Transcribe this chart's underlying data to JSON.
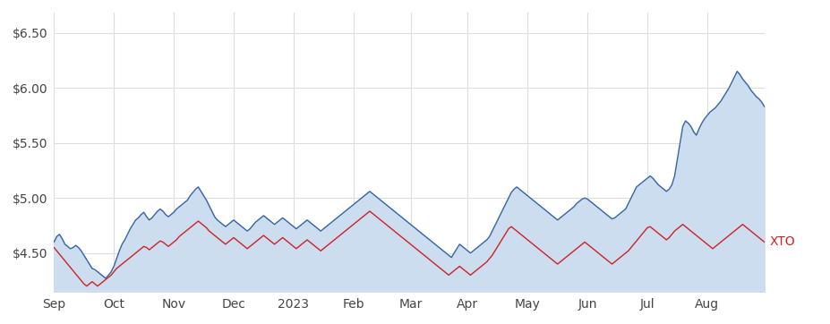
{
  "background_color": "#ffffff",
  "plot_bg_color": "#ffffff",
  "grid_color": "#dddddd",
  "blue_line_color": "#3465a8",
  "blue_fill_color": "#ccddf0",
  "red_line_color": "#cc2222",
  "xtick_labels": [
    "Sep",
    "Oct",
    "Nov",
    "Dec",
    "2023",
    "Feb",
    "Mar",
    "Apr",
    "May",
    "Jun",
    "Jul",
    "Aug"
  ],
  "xtick_positions": [
    0,
    22,
    44,
    66,
    88,
    110,
    131,
    152,
    174,
    196,
    218,
    240
  ],
  "ytick_values": [
    4.5,
    5.0,
    5.5,
    6.0,
    6.5
  ],
  "ylim": [
    4.15,
    6.68
  ],
  "label_xto": "XTO",
  "label_color_xto": "#cc2222",
  "iag_series": [
    4.6,
    4.65,
    4.67,
    4.63,
    4.58,
    4.56,
    4.54,
    4.55,
    4.57,
    4.55,
    4.52,
    4.48,
    4.44,
    4.4,
    4.36,
    4.35,
    4.33,
    4.31,
    4.29,
    4.27,
    4.3,
    4.33,
    4.38,
    4.45,
    4.52,
    4.58,
    4.62,
    4.67,
    4.72,
    4.76,
    4.8,
    4.82,
    4.85,
    4.87,
    4.83,
    4.8,
    4.82,
    4.85,
    4.88,
    4.9,
    4.88,
    4.85,
    4.83,
    4.85,
    4.87,
    4.9,
    4.92,
    4.94,
    4.96,
    4.98,
    5.02,
    5.05,
    5.08,
    5.1,
    5.06,
    5.02,
    4.98,
    4.93,
    4.88,
    4.83,
    4.8,
    4.78,
    4.76,
    4.74,
    4.76,
    4.78,
    4.8,
    4.78,
    4.76,
    4.74,
    4.72,
    4.7,
    4.72,
    4.75,
    4.78,
    4.8,
    4.82,
    4.84,
    4.82,
    4.8,
    4.78,
    4.76,
    4.78,
    4.8,
    4.82,
    4.8,
    4.78,
    4.76,
    4.74,
    4.72,
    4.74,
    4.76,
    4.78,
    4.8,
    4.78,
    4.76,
    4.74,
    4.72,
    4.7,
    4.72,
    4.74,
    4.76,
    4.78,
    4.8,
    4.82,
    4.84,
    4.86,
    4.88,
    4.9,
    4.92,
    4.94,
    4.96,
    4.98,
    5.0,
    5.02,
    5.04,
    5.06,
    5.04,
    5.02,
    5.0,
    4.98,
    4.96,
    4.94,
    4.92,
    4.9,
    4.88,
    4.86,
    4.84,
    4.82,
    4.8,
    4.78,
    4.76,
    4.74,
    4.72,
    4.7,
    4.68,
    4.66,
    4.64,
    4.62,
    4.6,
    4.58,
    4.56,
    4.54,
    4.52,
    4.5,
    4.48,
    4.46,
    4.5,
    4.54,
    4.58,
    4.56,
    4.54,
    4.52,
    4.5,
    4.52,
    4.54,
    4.56,
    4.58,
    4.6,
    4.62,
    4.65,
    4.7,
    4.75,
    4.8,
    4.85,
    4.9,
    4.95,
    5.0,
    5.05,
    5.08,
    5.1,
    5.08,
    5.06,
    5.04,
    5.02,
    5.0,
    4.98,
    4.96,
    4.94,
    4.92,
    4.9,
    4.88,
    4.86,
    4.84,
    4.82,
    4.8,
    4.82,
    4.84,
    4.86,
    4.88,
    4.9,
    4.92,
    4.95,
    4.97,
    4.99,
    5.0,
    4.99,
    4.97,
    4.95,
    4.93,
    4.91,
    4.89,
    4.87,
    4.85,
    4.83,
    4.81,
    4.82,
    4.84,
    4.86,
    4.88,
    4.9,
    4.95,
    5.0,
    5.05,
    5.1,
    5.12,
    5.14,
    5.16,
    5.18,
    5.2,
    5.18,
    5.15,
    5.12,
    5.1,
    5.08,
    5.06,
    5.08,
    5.12,
    5.2,
    5.35,
    5.5,
    5.65,
    5.7,
    5.68,
    5.65,
    5.6,
    5.57,
    5.63,
    5.68,
    5.72,
    5.75,
    5.78,
    5.8,
    5.82,
    5.85,
    5.88,
    5.92,
    5.96,
    6.0,
    6.05,
    6.1,
    6.15,
    6.12,
    6.08,
    6.05,
    6.02,
    5.98,
    5.95,
    5.92,
    5.9,
    5.87,
    5.83
  ],
  "asx_series": [
    4.55,
    4.52,
    4.49,
    4.46,
    4.43,
    4.4,
    4.37,
    4.34,
    4.31,
    4.28,
    4.25,
    4.22,
    4.2,
    4.22,
    4.24,
    4.22,
    4.2,
    4.22,
    4.24,
    4.26,
    4.28,
    4.3,
    4.33,
    4.36,
    4.38,
    4.4,
    4.42,
    4.44,
    4.46,
    4.48,
    4.5,
    4.52,
    4.54,
    4.56,
    4.55,
    4.53,
    4.55,
    4.57,
    4.59,
    4.61,
    4.6,
    4.58,
    4.56,
    4.58,
    4.6,
    4.62,
    4.65,
    4.67,
    4.69,
    4.71,
    4.73,
    4.75,
    4.77,
    4.79,
    4.77,
    4.75,
    4.73,
    4.7,
    4.68,
    4.66,
    4.64,
    4.62,
    4.6,
    4.58,
    4.6,
    4.62,
    4.64,
    4.62,
    4.6,
    4.58,
    4.56,
    4.54,
    4.56,
    4.58,
    4.6,
    4.62,
    4.64,
    4.66,
    4.64,
    4.62,
    4.6,
    4.58,
    4.6,
    4.62,
    4.64,
    4.62,
    4.6,
    4.58,
    4.56,
    4.54,
    4.56,
    4.58,
    4.6,
    4.62,
    4.6,
    4.58,
    4.56,
    4.54,
    4.52,
    4.54,
    4.56,
    4.58,
    4.6,
    4.62,
    4.64,
    4.66,
    4.68,
    4.7,
    4.72,
    4.74,
    4.76,
    4.78,
    4.8,
    4.82,
    4.84,
    4.86,
    4.88,
    4.86,
    4.84,
    4.82,
    4.8,
    4.78,
    4.76,
    4.74,
    4.72,
    4.7,
    4.68,
    4.66,
    4.64,
    4.62,
    4.6,
    4.58,
    4.56,
    4.54,
    4.52,
    4.5,
    4.48,
    4.46,
    4.44,
    4.42,
    4.4,
    4.38,
    4.36,
    4.34,
    4.32,
    4.3,
    4.32,
    4.34,
    4.36,
    4.38,
    4.36,
    4.34,
    4.32,
    4.3,
    4.32,
    4.34,
    4.36,
    4.38,
    4.4,
    4.42,
    4.45,
    4.48,
    4.52,
    4.56,
    4.6,
    4.64,
    4.68,
    4.72,
    4.74,
    4.72,
    4.7,
    4.68,
    4.66,
    4.64,
    4.62,
    4.6,
    4.58,
    4.56,
    4.54,
    4.52,
    4.5,
    4.48,
    4.46,
    4.44,
    4.42,
    4.4,
    4.42,
    4.44,
    4.46,
    4.48,
    4.5,
    4.52,
    4.54,
    4.56,
    4.58,
    4.6,
    4.58,
    4.56,
    4.54,
    4.52,
    4.5,
    4.48,
    4.46,
    4.44,
    4.42,
    4.4,
    4.42,
    4.44,
    4.46,
    4.48,
    4.5,
    4.52,
    4.55,
    4.58,
    4.61,
    4.64,
    4.67,
    4.7,
    4.73,
    4.74,
    4.72,
    4.7,
    4.68,
    4.66,
    4.64,
    4.62,
    4.64,
    4.67,
    4.7,
    4.72,
    4.74,
    4.76,
    4.74,
    4.72,
    4.7,
    4.68,
    4.66,
    4.64,
    4.62,
    4.6,
    4.58,
    4.56,
    4.54,
    4.56,
    4.58,
    4.6,
    4.62,
    4.64,
    4.66,
    4.68,
    4.7,
    4.72,
    4.74,
    4.76,
    4.74,
    4.72,
    4.7,
    4.68,
    4.66,
    4.64,
    4.62,
    4.6
  ]
}
